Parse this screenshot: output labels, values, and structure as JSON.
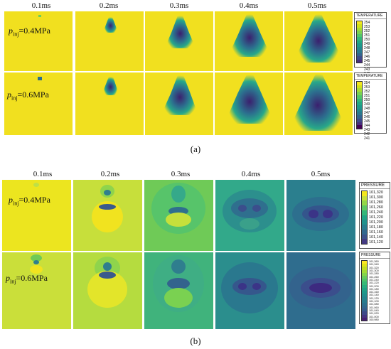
{
  "figure_a": {
    "times": [
      "0.1ms",
      "0.2ms",
      "0.3ms",
      "0.4ms",
      "0.5ms"
    ],
    "rows": [
      {
        "label_prefix": "p",
        "label_sub": "inj",
        "label_value": "=0.4MPa"
      },
      {
        "label_prefix": "p",
        "label_sub": "inj",
        "label_value": "=0.6MPa"
      }
    ],
    "legends": [
      {
        "title": "TEMPERATURE",
        "ticks": [
          "254",
          "253",
          "252",
          "251",
          "250",
          "249",
          "248",
          "247",
          "246",
          "245",
          "244",
          "243",
          "242"
        ]
      },
      {
        "title": "TEMPERATURE",
        "ticks": [
          "254",
          "253",
          "252",
          "251",
          "250",
          "249",
          "248",
          "247",
          "246",
          "245",
          "244",
          "243",
          "242",
          "241"
        ]
      }
    ],
    "caption": "(a)"
  },
  "figure_b": {
    "times": [
      "0.1ms",
      "0.2ms",
      "0.3ms",
      "0.4ms",
      "0.5ms"
    ],
    "rows": [
      {
        "label_prefix": "p",
        "label_sub": "inj",
        "label_value": "=0.4MPa"
      },
      {
        "label_prefix": "p",
        "label_sub": "inj",
        "label_value": "=0.6MPa"
      }
    ],
    "legends": [
      {
        "title": "PRESSURE",
        "ticks": [
          "101,320",
          "101,300",
          "101,280",
          "101,260",
          "101,240",
          "101,220",
          "101,200",
          "101,180",
          "101,160",
          "101,140",
          "101,120"
        ]
      },
      {
        "title": "PRESSURE",
        "ticks": [
          "101,360",
          "101,340",
          "101,320",
          "101,300",
          "101,280",
          "101,260",
          "101,240",
          "101,220",
          "101,200",
          "101,180",
          "101,160",
          "101,140",
          "101,120",
          "101,100",
          "101,080",
          "101,060",
          "101,040",
          "101,020",
          "101,000",
          "100,980"
        ]
      }
    ],
    "caption": "(b)"
  },
  "colors": {
    "viridis_high": "#f4e61e",
    "viridis_mid": "#2a8e8c",
    "viridis_low": "#3b1f6e",
    "yellow_bg": "#f1e01f",
    "pressure_bg_a": "#cadf3a"
  }
}
